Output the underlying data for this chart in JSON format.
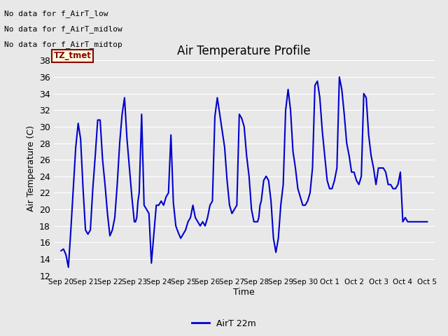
{
  "title": "Air Temperature Profile",
  "xlabel": "Time",
  "ylabel": "Air Temperature (C)",
  "ylim": [
    12,
    38
  ],
  "yticks": [
    12,
    14,
    16,
    18,
    20,
    22,
    24,
    26,
    28,
    30,
    32,
    34,
    36,
    38
  ],
  "line_color": "#0000cc",
  "line_width": 1.5,
  "bg_color": "#e8e8e8",
  "plot_bg_color": "#e8e8e8",
  "grid_color": "#ffffff",
  "legend_label": "AirT 22m",
  "no_data_texts": [
    "No data for f_AirT_low",
    "No data for f_AirT_midlow",
    "No data for f_AirT_midtop"
  ],
  "tz_label": "TZ_tmet",
  "x_tick_labels": [
    "Sep 20",
    "Sep 21",
    "Sep 22",
    "Sep 23",
    "Sep 24",
    "Sep 25",
    "Sep 26",
    "Sep 27",
    "Sep 28",
    "Sep 29",
    "Sep 30",
    "Oct 1",
    "Oct 2",
    "Oct 3",
    "Oct 4",
    "Oct 5"
  ],
  "time_data": [
    0.0,
    0.1,
    0.2,
    0.3,
    0.4,
    0.5,
    0.6,
    0.7,
    0.8,
    0.9,
    1.0,
    1.1,
    1.2,
    1.3,
    1.4,
    1.5,
    1.6,
    1.7,
    1.8,
    1.9,
    2.0,
    2.1,
    2.2,
    2.3,
    2.4,
    2.5,
    2.6,
    2.7,
    2.8,
    2.9,
    3.0,
    3.05,
    3.1,
    3.15,
    3.2,
    3.3,
    3.4,
    3.5,
    3.6,
    3.7,
    3.8,
    3.9,
    4.0,
    4.1,
    4.2,
    4.3,
    4.4,
    4.5,
    4.6,
    4.7,
    4.8,
    4.9,
    5.0,
    5.1,
    5.2,
    5.3,
    5.4,
    5.5,
    5.6,
    5.7,
    5.8,
    5.9,
    6.0,
    6.1,
    6.2,
    6.3,
    6.4,
    6.5,
    6.6,
    6.7,
    6.8,
    6.9,
    7.0,
    7.1,
    7.2,
    7.3,
    7.4,
    7.5,
    7.6,
    7.7,
    7.8,
    7.9,
    8.0,
    8.05,
    8.1,
    8.15,
    8.2,
    8.3,
    8.4,
    8.5,
    8.6,
    8.7,
    8.8,
    8.9,
    9.0,
    9.1,
    9.2,
    9.3,
    9.4,
    9.5,
    9.6,
    9.7,
    9.8,
    9.9,
    10.0,
    10.1,
    10.2,
    10.3,
    10.4,
    10.5,
    10.6,
    10.7,
    10.8,
    10.9,
    11.0,
    11.1,
    11.2,
    11.3,
    11.4,
    11.5,
    11.6,
    11.7,
    11.8,
    11.9,
    12.0,
    12.1,
    12.2,
    12.3,
    12.4,
    12.5,
    12.6,
    12.7,
    12.8,
    12.9,
    13.0,
    13.1,
    13.2,
    13.3,
    13.4,
    13.5,
    13.6,
    13.7,
    13.8,
    13.9,
    14.0,
    14.1,
    14.2,
    14.3,
    14.4,
    14.5,
    14.6,
    14.7,
    14.8,
    14.9,
    15.0
  ],
  "temp_data": [
    15.0,
    15.2,
    14.5,
    13.0,
    17.5,
    22.5,
    27.5,
    30.4,
    28.5,
    22.5,
    17.5,
    17.0,
    17.5,
    22.5,
    26.5,
    30.8,
    30.8,
    26.0,
    23.0,
    19.5,
    16.8,
    17.5,
    19.0,
    23.0,
    28.0,
    31.5,
    33.5,
    28.5,
    25.0,
    21.5,
    18.5,
    18.5,
    19.0,
    21.0,
    22.0,
    31.5,
    20.5,
    20.0,
    19.5,
    13.5,
    17.0,
    20.5,
    20.5,
    21.0,
    20.5,
    21.5,
    22.0,
    29.0,
    20.8,
    18.0,
    17.2,
    16.5,
    17.0,
    17.5,
    18.5,
    19.0,
    20.5,
    19.0,
    18.5,
    18.0,
    18.5,
    18.0,
    19.0,
    20.5,
    21.0,
    31.2,
    33.5,
    31.5,
    29.5,
    27.5,
    23.5,
    20.5,
    19.5,
    20.0,
    20.5,
    31.5,
    31.0,
    30.0,
    26.5,
    24.0,
    20.0,
    18.5,
    18.5,
    18.5,
    19.0,
    20.5,
    21.0,
    23.5,
    24.0,
    23.5,
    21.0,
    16.5,
    14.8,
    16.5,
    20.5,
    23.0,
    32.0,
    34.5,
    32.0,
    27.0,
    25.0,
    22.5,
    21.5,
    20.5,
    20.5,
    21.0,
    22.0,
    25.0,
    35.0,
    35.5,
    33.5,
    29.5,
    26.5,
    23.5,
    22.5,
    22.5,
    23.5,
    25.0,
    36.0,
    34.5,
    31.5,
    28.0,
    26.5,
    24.5,
    24.5,
    23.5,
    23.0,
    24.0,
    34.0,
    33.5,
    29.0,
    26.5,
    25.0,
    23.0,
    25.0,
    25.0,
    25.0,
    24.5,
    23.0,
    23.0,
    22.5,
    22.5,
    23.0,
    24.5,
    18.5,
    19.0,
    18.5,
    18.5,
    18.5,
    18.5,
    18.5,
    18.5,
    18.5,
    18.5,
    18.5
  ]
}
